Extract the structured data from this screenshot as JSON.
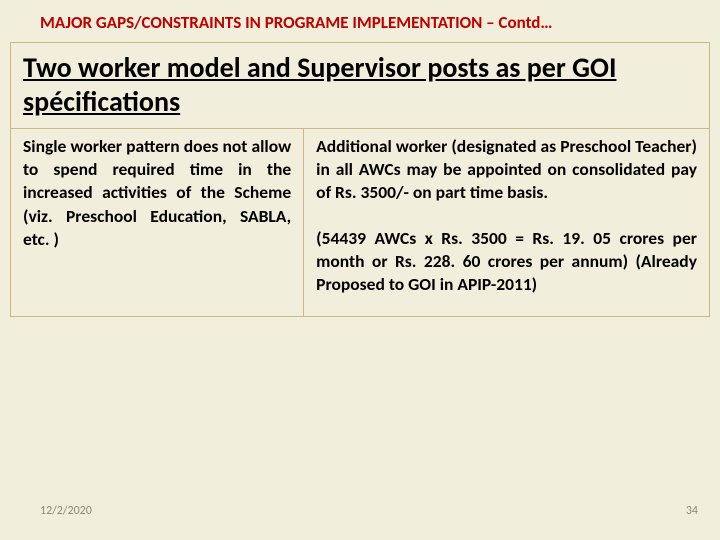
{
  "header": {
    "text": "MAJOR GAPS/CONSTRAINTS IN PROGRAME IMPLEMENTATION – Contd…"
  },
  "title": {
    "text": "Two worker model  and Supervisor posts as per GOI spécifications"
  },
  "left": {
    "para": "Single worker pattern does not allow to spend required time in the increased activities of the Scheme (viz. Preschool Education, SABLA, etc. )"
  },
  "right": {
    "para1": "Additional worker (designated as Preschool Teacher) in all AWCs may be appointed on consolidated pay of Rs. 3500/- on part time basis.",
    "para2": "(54439 AWCs x Rs. 3500 = Rs. 19. 05 crores per month or Rs. 228. 60 crores per annum) (Already Proposed to GOI in APIP-2011)"
  },
  "footer": {
    "date": "12/2/2020",
    "page": "34"
  }
}
